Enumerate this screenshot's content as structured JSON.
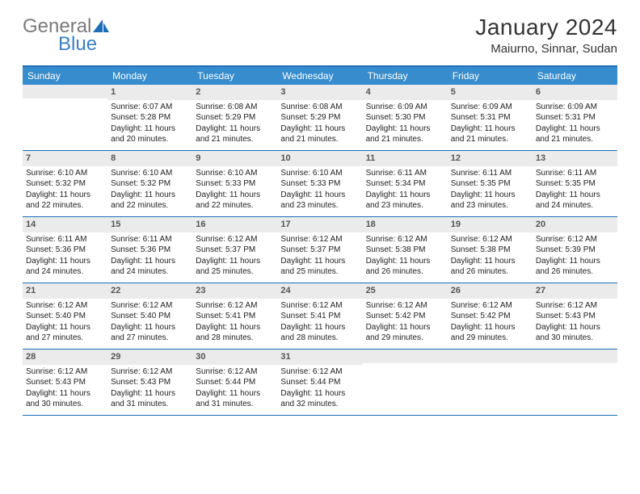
{
  "logo": {
    "general": "General",
    "blue": "Blue"
  },
  "title": "January 2024",
  "location": "Maiurno, Sinnar, Sudan",
  "colors": {
    "header_bg": "#368ccc",
    "border": "#1f6db5",
    "daynum_bg": "#ebebeb",
    "logo_gray": "#7a7a7a",
    "logo_blue": "#3a80c2"
  },
  "weekdays": [
    "Sunday",
    "Monday",
    "Tuesday",
    "Wednesday",
    "Thursday",
    "Friday",
    "Saturday"
  ],
  "weeks": [
    [
      {
        "n": "",
        "t": []
      },
      {
        "n": "1",
        "t": [
          "Sunrise: 6:07 AM",
          "Sunset: 5:28 PM",
          "Daylight: 11 hours",
          "and 20 minutes."
        ]
      },
      {
        "n": "2",
        "t": [
          "Sunrise: 6:08 AM",
          "Sunset: 5:29 PM",
          "Daylight: 11 hours",
          "and 21 minutes."
        ]
      },
      {
        "n": "3",
        "t": [
          "Sunrise: 6:08 AM",
          "Sunset: 5:29 PM",
          "Daylight: 11 hours",
          "and 21 minutes."
        ]
      },
      {
        "n": "4",
        "t": [
          "Sunrise: 6:09 AM",
          "Sunset: 5:30 PM",
          "Daylight: 11 hours",
          "and 21 minutes."
        ]
      },
      {
        "n": "5",
        "t": [
          "Sunrise: 6:09 AM",
          "Sunset: 5:31 PM",
          "Daylight: 11 hours",
          "and 21 minutes."
        ]
      },
      {
        "n": "6",
        "t": [
          "Sunrise: 6:09 AM",
          "Sunset: 5:31 PM",
          "Daylight: 11 hours",
          "and 21 minutes."
        ]
      }
    ],
    [
      {
        "n": "7",
        "t": [
          "Sunrise: 6:10 AM",
          "Sunset: 5:32 PM",
          "Daylight: 11 hours",
          "and 22 minutes."
        ]
      },
      {
        "n": "8",
        "t": [
          "Sunrise: 6:10 AM",
          "Sunset: 5:32 PM",
          "Daylight: 11 hours",
          "and 22 minutes."
        ]
      },
      {
        "n": "9",
        "t": [
          "Sunrise: 6:10 AM",
          "Sunset: 5:33 PM",
          "Daylight: 11 hours",
          "and 22 minutes."
        ]
      },
      {
        "n": "10",
        "t": [
          "Sunrise: 6:10 AM",
          "Sunset: 5:33 PM",
          "Daylight: 11 hours",
          "and 23 minutes."
        ]
      },
      {
        "n": "11",
        "t": [
          "Sunrise: 6:11 AM",
          "Sunset: 5:34 PM",
          "Daylight: 11 hours",
          "and 23 minutes."
        ]
      },
      {
        "n": "12",
        "t": [
          "Sunrise: 6:11 AM",
          "Sunset: 5:35 PM",
          "Daylight: 11 hours",
          "and 23 minutes."
        ]
      },
      {
        "n": "13",
        "t": [
          "Sunrise: 6:11 AM",
          "Sunset: 5:35 PM",
          "Daylight: 11 hours",
          "and 24 minutes."
        ]
      }
    ],
    [
      {
        "n": "14",
        "t": [
          "Sunrise: 6:11 AM",
          "Sunset: 5:36 PM",
          "Daylight: 11 hours",
          "and 24 minutes."
        ]
      },
      {
        "n": "15",
        "t": [
          "Sunrise: 6:11 AM",
          "Sunset: 5:36 PM",
          "Daylight: 11 hours",
          "and 24 minutes."
        ]
      },
      {
        "n": "16",
        "t": [
          "Sunrise: 6:12 AM",
          "Sunset: 5:37 PM",
          "Daylight: 11 hours",
          "and 25 minutes."
        ]
      },
      {
        "n": "17",
        "t": [
          "Sunrise: 6:12 AM",
          "Sunset: 5:37 PM",
          "Daylight: 11 hours",
          "and 25 minutes."
        ]
      },
      {
        "n": "18",
        "t": [
          "Sunrise: 6:12 AM",
          "Sunset: 5:38 PM",
          "Daylight: 11 hours",
          "and 26 minutes."
        ]
      },
      {
        "n": "19",
        "t": [
          "Sunrise: 6:12 AM",
          "Sunset: 5:38 PM",
          "Daylight: 11 hours",
          "and 26 minutes."
        ]
      },
      {
        "n": "20",
        "t": [
          "Sunrise: 6:12 AM",
          "Sunset: 5:39 PM",
          "Daylight: 11 hours",
          "and 26 minutes."
        ]
      }
    ],
    [
      {
        "n": "21",
        "t": [
          "Sunrise: 6:12 AM",
          "Sunset: 5:40 PM",
          "Daylight: 11 hours",
          "and 27 minutes."
        ]
      },
      {
        "n": "22",
        "t": [
          "Sunrise: 6:12 AM",
          "Sunset: 5:40 PM",
          "Daylight: 11 hours",
          "and 27 minutes."
        ]
      },
      {
        "n": "23",
        "t": [
          "Sunrise: 6:12 AM",
          "Sunset: 5:41 PM",
          "Daylight: 11 hours",
          "and 28 minutes."
        ]
      },
      {
        "n": "24",
        "t": [
          "Sunrise: 6:12 AM",
          "Sunset: 5:41 PM",
          "Daylight: 11 hours",
          "and 28 minutes."
        ]
      },
      {
        "n": "25",
        "t": [
          "Sunrise: 6:12 AM",
          "Sunset: 5:42 PM",
          "Daylight: 11 hours",
          "and 29 minutes."
        ]
      },
      {
        "n": "26",
        "t": [
          "Sunrise: 6:12 AM",
          "Sunset: 5:42 PM",
          "Daylight: 11 hours",
          "and 29 minutes."
        ]
      },
      {
        "n": "27",
        "t": [
          "Sunrise: 6:12 AM",
          "Sunset: 5:43 PM",
          "Daylight: 11 hours",
          "and 30 minutes."
        ]
      }
    ],
    [
      {
        "n": "28",
        "t": [
          "Sunrise: 6:12 AM",
          "Sunset: 5:43 PM",
          "Daylight: 11 hours",
          "and 30 minutes."
        ]
      },
      {
        "n": "29",
        "t": [
          "Sunrise: 6:12 AM",
          "Sunset: 5:43 PM",
          "Daylight: 11 hours",
          "and 31 minutes."
        ]
      },
      {
        "n": "30",
        "t": [
          "Sunrise: 6:12 AM",
          "Sunset: 5:44 PM",
          "Daylight: 11 hours",
          "and 31 minutes."
        ]
      },
      {
        "n": "31",
        "t": [
          "Sunrise: 6:12 AM",
          "Sunset: 5:44 PM",
          "Daylight: 11 hours",
          "and 32 minutes."
        ]
      },
      {
        "n": "",
        "t": []
      },
      {
        "n": "",
        "t": []
      },
      {
        "n": "",
        "t": []
      }
    ]
  ]
}
